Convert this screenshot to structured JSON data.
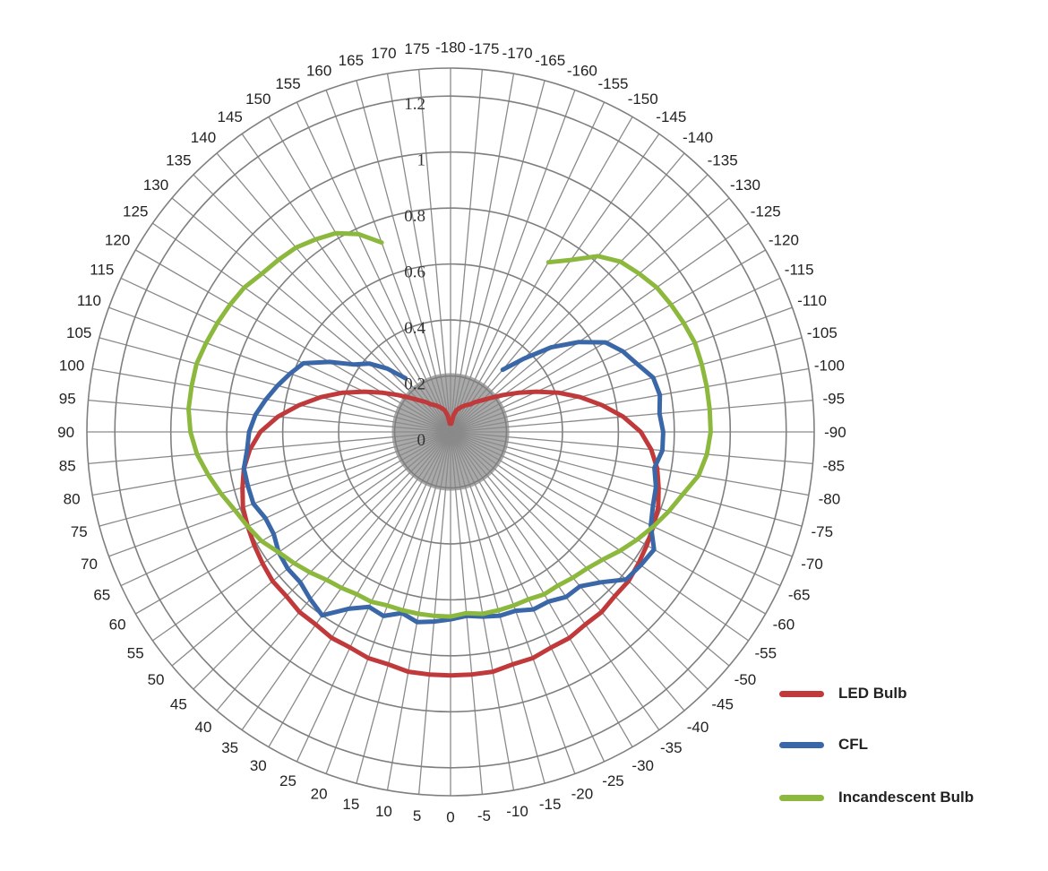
{
  "chart_data": {
    "type": "polar-line",
    "angle_labels": [
      "-180",
      "-175",
      "-170",
      "-165",
      "-160",
      "-155",
      "-150",
      "-145",
      "-140",
      "-135",
      "-130",
      "-125",
      "-120",
      "-115",
      "-110",
      "-105",
      "-100",
      "-95",
      "-90",
      "-85",
      "-80",
      "-75",
      "-70",
      "-65",
      "-60",
      "-55",
      "-50",
      "-45",
      "-40",
      "-35",
      "-30",
      "-25",
      "-20",
      "-15",
      "-10",
      "-5",
      "0",
      "5",
      "10",
      "15",
      "20",
      "25",
      "30",
      "35",
      "40",
      "45",
      "50",
      "55",
      "60",
      "65",
      "70",
      "75",
      "80",
      "85",
      "90",
      "95",
      "100",
      "105",
      "110",
      "115",
      "120",
      "125",
      "130",
      "135",
      "140",
      "145",
      "150",
      "155",
      "160",
      "165",
      "170",
      "175"
    ],
    "radial_ticks": [
      "0",
      "0.2",
      "0.4",
      "0.6",
      "0.8",
      "1",
      "1.2"
    ],
    "rlim": [
      0,
      1.3
    ],
    "angle_direction": "0 at bottom, positive angles on the left, negative angles on the right, ±180 at top",
    "legend_position": "bottom-right",
    "series": [
      {
        "name": "LED Bulb",
        "color": "#c0393b",
        "angles": [
          0,
          5,
          10,
          15,
          20,
          25,
          30,
          35,
          40,
          45,
          50,
          55,
          60,
          65,
          70,
          75,
          80,
          85,
          90,
          95,
          100,
          105,
          110,
          115,
          120,
          125,
          130,
          135,
          140,
          145,
          150,
          155,
          160,
          165,
          170,
          175,
          -175,
          -170,
          -165,
          -160,
          -155,
          -150,
          -145,
          -140,
          -135,
          -130,
          -125,
          -120,
          -115,
          -110,
          -105,
          -100,
          -95,
          -90,
          -85,
          -80,
          -75,
          -70,
          -65,
          -60,
          -55,
          -50,
          -45,
          -40,
          -35,
          -30,
          -25,
          -20,
          -15,
          -10,
          -5,
          0
        ],
        "values": [
          0.87,
          0.87,
          0.87,
          0.86,
          0.86,
          0.85,
          0.85,
          0.84,
          0.84,
          0.83,
          0.83,
          0.82,
          0.81,
          0.8,
          0.79,
          0.77,
          0.75,
          0.72,
          0.68,
          0.62,
          0.55,
          0.48,
          0.41,
          0.34,
          0.28,
          0.23,
          0.19,
          0.16,
          0.14,
          0.12,
          0.11,
          0.1,
          0.09,
          0.08,
          0.06,
          0.03,
          0.03,
          0.06,
          0.08,
          0.09,
          0.1,
          0.11,
          0.12,
          0.14,
          0.16,
          0.19,
          0.23,
          0.28,
          0.34,
          0.41,
          0.48,
          0.55,
          0.62,
          0.68,
          0.72,
          0.75,
          0.77,
          0.79,
          0.8,
          0.81,
          0.82,
          0.83,
          0.83,
          0.84,
          0.84,
          0.85,
          0.85,
          0.86,
          0.86,
          0.87,
          0.87,
          0.87
        ]
      },
      {
        "name": "CFL",
        "color": "#3a67a8",
        "angles": [
          -140,
          -135,
          -130,
          -125,
          -120,
          -115,
          -110,
          -105,
          -100,
          -95,
          -90,
          -85,
          -80,
          -75,
          -70,
          -65,
          -60,
          -55,
          -50,
          -45,
          -40,
          -35,
          -30,
          -25,
          -20,
          -15,
          -10,
          -5,
          0,
          5,
          10,
          15,
          20,
          25,
          30,
          35,
          40,
          45,
          50,
          55,
          60,
          65,
          70,
          75,
          80,
          85,
          90,
          95,
          100,
          105,
          110,
          115,
          120,
          125,
          130,
          135,
          140
        ],
        "values": [
          0.29,
          0.37,
          0.47,
          0.56,
          0.64,
          0.68,
          0.71,
          0.75,
          0.76,
          0.75,
          0.76,
          0.76,
          0.74,
          0.76,
          0.77,
          0.79,
          0.84,
          0.83,
          0.82,
          0.76,
          0.72,
          0.72,
          0.7,
          0.7,
          0.68,
          0.68,
          0.67,
          0.66,
          0.67,
          0.68,
          0.69,
          0.67,
          0.7,
          0.69,
          0.73,
          0.8,
          0.78,
          0.76,
          0.76,
          0.75,
          0.73,
          0.73,
          0.75,
          0.75,
          0.75,
          0.73,
          0.72,
          0.7,
          0.67,
          0.64,
          0.61,
          0.58,
          0.5,
          0.42,
          0.38,
          0.32,
          0.25
        ]
      },
      {
        "name": "Incandescent Bulb",
        "color": "#8db83e",
        "angles": [
          -150,
          -145,
          -140,
          -135,
          -130,
          -125,
          -120,
          -115,
          -110,
          -105,
          -100,
          -95,
          -90,
          -85,
          -80,
          -75,
          -70,
          -65,
          -60,
          -55,
          -50,
          -45,
          -40,
          -35,
          -30,
          -25,
          -20,
          -15,
          -10,
          -5,
          0,
          5,
          10,
          15,
          20,
          25,
          30,
          35,
          40,
          45,
          50,
          55,
          60,
          65,
          70,
          75,
          80,
          85,
          90,
          95,
          100,
          105,
          110,
          115,
          120,
          125,
          130,
          135,
          140,
          145,
          150,
          155,
          160
        ],
        "values": [
          0.7,
          0.75,
          0.82,
          0.86,
          0.88,
          0.9,
          0.91,
          0.92,
          0.93,
          0.93,
          0.93,
          0.93,
          0.93,
          0.92,
          0.9,
          0.86,
          0.83,
          0.8,
          0.77,
          0.74,
          0.71,
          0.69,
          0.68,
          0.67,
          0.67,
          0.66,
          0.66,
          0.66,
          0.66,
          0.65,
          0.66,
          0.66,
          0.66,
          0.66,
          0.66,
          0.67,
          0.67,
          0.68,
          0.69,
          0.71,
          0.73,
          0.75,
          0.78,
          0.8,
          0.82,
          0.85,
          0.88,
          0.91,
          0.93,
          0.94,
          0.94,
          0.94,
          0.93,
          0.92,
          0.91,
          0.9,
          0.88,
          0.87,
          0.86,
          0.84,
          0.82,
          0.78,
          0.72
        ]
      }
    ]
  },
  "legend": {
    "items": [
      {
        "label": "LED Bulb",
        "color": "#c0393b"
      },
      {
        "label": "CFL",
        "color": "#3a67a8"
      },
      {
        "label": "Incandescent Bulb",
        "color": "#8db83e"
      }
    ]
  }
}
